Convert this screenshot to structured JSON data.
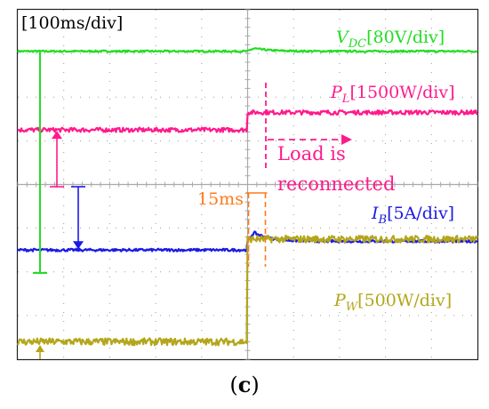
{
  "chart_data": {
    "type": "line",
    "title": "",
    "timebase": "[100ms/div]",
    "grid": {
      "divisions_x": 10,
      "divisions_y": 8,
      "style": "dotted"
    },
    "colors": {
      "vdc": "#22dd22",
      "pl": "#ff1a8c",
      "ib": "#1a1ae6",
      "pw": "#b3a61a",
      "event": "#ff7a1a"
    },
    "series": [
      {
        "key": "vdc",
        "name": "V_DC",
        "scale": "[80V/div]",
        "baseline_div": 7.05,
        "step_div": 0.0,
        "overshoot_div": 0.1,
        "noise_div": 0.02
      },
      {
        "key": "pl",
        "name": "P_L",
        "scale": "[1500W/div]",
        "baseline_div": 5.25,
        "step_div": 0.4,
        "overshoot_div": 0.0,
        "noise_div": 0.05
      },
      {
        "key": "ib",
        "name": "I_B",
        "scale": "[5A/div]",
        "baseline_div": 2.5,
        "step_div": 0.2,
        "overshoot_div": 0.3,
        "noise_div": 0.03
      },
      {
        "key": "pw",
        "name": "P_W",
        "scale": "[500W/div]",
        "baseline_div": 0.4,
        "step_div": 2.35,
        "overshoot_div": 0.0,
        "noise_div": 0.08
      }
    ],
    "labels": {
      "vdc": {
        "main": "V",
        "sub": "DC",
        "scale": "[80V/div]"
      },
      "pl": {
        "main": "P",
        "sub": "L",
        "scale": "[1500W/div]"
      },
      "ib": {
        "main": "I",
        "sub": "B",
        "scale": "[5A/div]"
      },
      "pw": {
        "main": "P",
        "sub": "W",
        "scale": "[500W/div]"
      }
    },
    "event": {
      "time_div": 5.0,
      "delay_label": "15ms",
      "note_line1": "Load is",
      "note_line2": "reconnected"
    }
  },
  "caption": {
    "text": "(c)",
    "letter": "c"
  }
}
